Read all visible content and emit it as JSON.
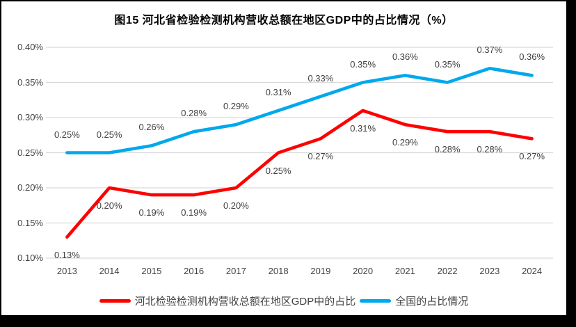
{
  "title": "图15 河北省检验检测机构营收总额在地区GDP中的占比情况（%）",
  "colors": {
    "hebei_line": "#FF0000",
    "national_line": "#00A8EC",
    "gridline": "#D9D9D9",
    "axis_text": "#404040",
    "data_label_text": "#404040",
    "title_text": "#000000",
    "chart_background": "#FFFFFF",
    "window_border": "#000000"
  },
  "chart_data": {
    "type": "line",
    "title": "图15 河北省检验检测机构营收总额在地区GDP中的占比情况（%）",
    "xlabel": "",
    "ylabel": "",
    "x": [
      "2013",
      "2014",
      "2015",
      "2016",
      "2017",
      "2018",
      "2019",
      "2020",
      "2021",
      "2022",
      "2023",
      "2024"
    ],
    "series": [
      {
        "name": "河北检验检测机构营收总额在地区GDP中的占比",
        "color": "#FF0000",
        "values": [
          0.13,
          0.2,
          0.19,
          0.19,
          0.2,
          0.25,
          0.27,
          0.31,
          0.29,
          0.28,
          0.28,
          0.27
        ],
        "data_labels": [
          "0.13%",
          "0.20%",
          "0.19%",
          "0.19%",
          "0.20%",
          "0.25%",
          "0.27%",
          "0.31%",
          "0.29%",
          "0.28%",
          "0.28%",
          "0.27%"
        ],
        "label_position": "below"
      },
      {
        "name": "全国的占比情况",
        "color": "#00A8EC",
        "values": [
          0.25,
          0.25,
          0.26,
          0.28,
          0.29,
          0.31,
          0.33,
          0.35,
          0.36,
          0.35,
          0.37,
          0.36
        ],
        "data_labels": [
          "0.25%",
          "0.25%",
          "0.26%",
          "0.28%",
          "0.29%",
          "0.31%",
          "0.33%",
          "0.35%",
          "0.36%",
          "0.35%",
          "0.37%",
          "0.36%"
        ],
        "label_position": "above"
      }
    ],
    "ylim": [
      0.1,
      0.4
    ],
    "yticks": [
      {
        "value": 0.4,
        "label": "0.40%"
      },
      {
        "value": 0.35,
        "label": "0.35%"
      },
      {
        "value": 0.3,
        "label": "0.30%"
      },
      {
        "value": 0.25,
        "label": "0.25%"
      },
      {
        "value": 0.2,
        "label": "0.20%"
      },
      {
        "value": 0.15,
        "label": "0.15%"
      },
      {
        "value": 0.1,
        "label": "0.10%"
      }
    ],
    "grid": "horizontal",
    "legend_position": "bottom",
    "legend": [
      "河北检验检测机构营收总额在地区GDP中的占比",
      "全国的占比情况"
    ]
  }
}
